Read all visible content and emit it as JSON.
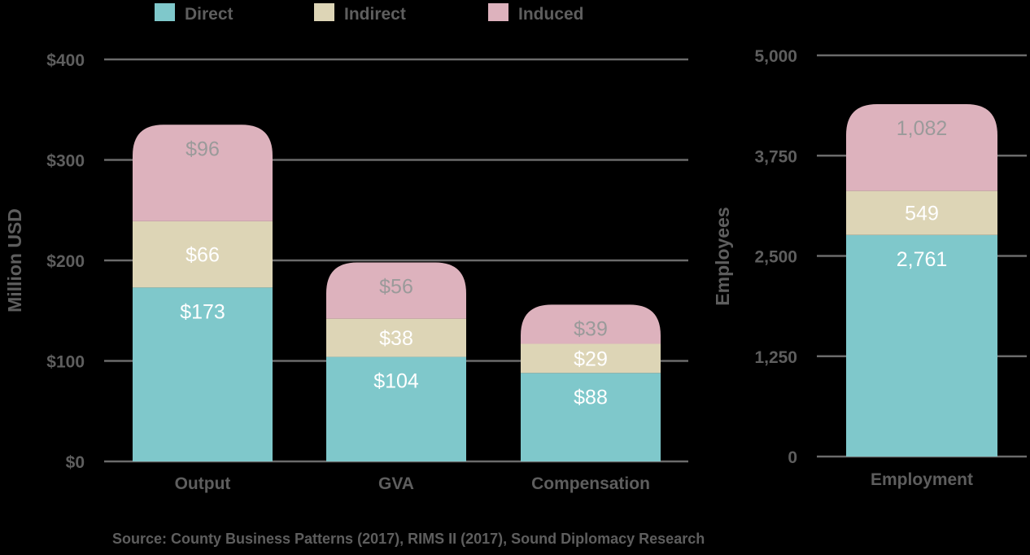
{
  "legend": [
    {
      "name": "Direct",
      "color": "#7fc8cb"
    },
    {
      "name": "Indirect",
      "color": "#ddd5b6"
    },
    {
      "name": "Induced",
      "color": "#ddb2bd"
    }
  ],
  "source": "Source: County Business Patterns (2017), RIMS II (2017), Sound Diplomacy Research",
  "chart_data": [
    {
      "type": "bar",
      "stacked": true,
      "ylabel": "Million USD",
      "ylim": [
        0,
        400
      ],
      "yticks": [
        0,
        100,
        200,
        300,
        400
      ],
      "ytick_labels": [
        "$0",
        "$100",
        "$200",
        "$300",
        "$400"
      ],
      "categories": [
        "Output",
        "GVA",
        "Compensation"
      ],
      "series": [
        {
          "name": "Direct",
          "values": [
            173,
            104,
            88
          ],
          "labels": [
            "$173",
            "$104",
            "$88"
          ]
        },
        {
          "name": "Indirect",
          "values": [
            66,
            38,
            29
          ],
          "labels": [
            "$66",
            "$38",
            "$29"
          ]
        },
        {
          "name": "Induced",
          "values": [
            96,
            56,
            39
          ],
          "labels": [
            "$96",
            "$56",
            "$39"
          ]
        }
      ],
      "grid": true
    },
    {
      "type": "bar",
      "stacked": true,
      "ylabel": "Employees",
      "ylim": [
        0,
        5000
      ],
      "yticks": [
        0,
        1250,
        2500,
        3750,
        5000
      ],
      "ytick_labels": [
        "0",
        "1,250",
        "2,500",
        "3,750",
        "5,000"
      ],
      "categories": [
        "Employment"
      ],
      "series": [
        {
          "name": "Direct",
          "values": [
            2761
          ],
          "labels": [
            "2,761"
          ]
        },
        {
          "name": "Indirect",
          "values": [
            549
          ],
          "labels": [
            "549"
          ]
        },
        {
          "name": "Induced",
          "values": [
            1082
          ],
          "labels": [
            "1,082"
          ]
        }
      ],
      "grid": true
    }
  ]
}
